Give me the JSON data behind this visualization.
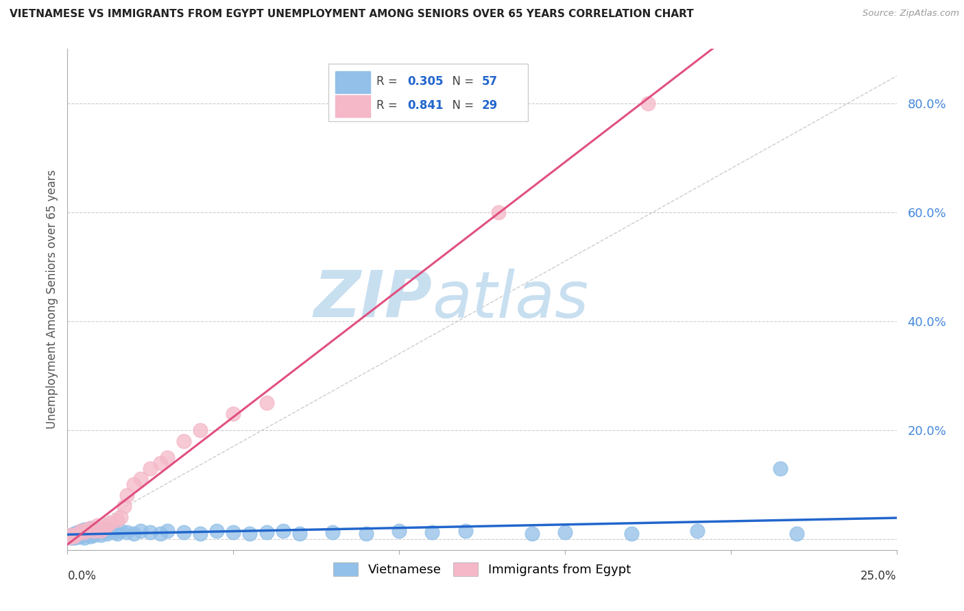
{
  "title": "VIETNAMESE VS IMMIGRANTS FROM EGYPT UNEMPLOYMENT AMONG SENIORS OVER 65 YEARS CORRELATION CHART",
  "source": "Source: ZipAtlas.com",
  "ylabel": "Unemployment Among Seniors over 65 years",
  "ytick_vals": [
    0.0,
    0.2,
    0.4,
    0.6,
    0.8
  ],
  "ytick_labels": [
    "",
    "20.0%",
    "40.0%",
    "60.0%",
    "80.0%"
  ],
  "xlim": [
    0.0,
    0.25
  ],
  "ylim": [
    -0.02,
    0.9
  ],
  "vietnamese_R": 0.305,
  "vietnamese_N": 57,
  "egypt_R": 0.841,
  "egypt_N": 29,
  "vietnamese_color": "#92c0e8",
  "egypt_color": "#f4b8c8",
  "vietnamese_line_color": "#2266cc",
  "egypt_line_color": "#e05080",
  "watermark_zip": "ZIP",
  "watermark_atlas": "atlas",
  "watermark_color_zip": "#c8dff0",
  "watermark_color_atlas": "#c8dff0",
  "legend_label_vietnamese": "Vietnamese",
  "legend_label_egypt": "Immigrants from Egypt",
  "viet_x": [
    0.001,
    0.001,
    0.002,
    0.002,
    0.002,
    0.003,
    0.003,
    0.003,
    0.004,
    0.004,
    0.004,
    0.005,
    0.005,
    0.005,
    0.006,
    0.006,
    0.007,
    0.007,
    0.007,
    0.008,
    0.008,
    0.009,
    0.009,
    0.01,
    0.01,
    0.011,
    0.012,
    0.012,
    0.013,
    0.014,
    0.015,
    0.016,
    0.018,
    0.02,
    0.022,
    0.025,
    0.028,
    0.03,
    0.035,
    0.04,
    0.045,
    0.05,
    0.055,
    0.06,
    0.065,
    0.07,
    0.08,
    0.09,
    0.1,
    0.11,
    0.12,
    0.14,
    0.15,
    0.17,
    0.19,
    0.215,
    0.22
  ],
  "viet_y": [
    0.003,
    0.005,
    0.002,
    0.008,
    0.01,
    0.004,
    0.007,
    0.012,
    0.005,
    0.008,
    0.015,
    0.003,
    0.01,
    0.018,
    0.008,
    0.015,
    0.005,
    0.01,
    0.02,
    0.007,
    0.015,
    0.012,
    0.018,
    0.008,
    0.012,
    0.015,
    0.01,
    0.02,
    0.015,
    0.012,
    0.01,
    0.015,
    0.012,
    0.01,
    0.015,
    0.012,
    0.01,
    0.015,
    0.012,
    0.01,
    0.015,
    0.012,
    0.01,
    0.012,
    0.015,
    0.01,
    0.012,
    0.01,
    0.015,
    0.012,
    0.015,
    0.01,
    0.012,
    0.01,
    0.015,
    0.13,
    0.01
  ],
  "egypt_x": [
    0.001,
    0.001,
    0.002,
    0.003,
    0.004,
    0.005,
    0.006,
    0.007,
    0.008,
    0.009,
    0.01,
    0.011,
    0.012,
    0.013,
    0.015,
    0.016,
    0.017,
    0.018,
    0.02,
    0.022,
    0.025,
    0.028,
    0.03,
    0.035,
    0.04,
    0.05,
    0.06,
    0.13,
    0.175
  ],
  "egypt_y": [
    0.004,
    0.008,
    0.005,
    0.01,
    0.015,
    0.012,
    0.018,
    0.02,
    0.015,
    0.025,
    0.015,
    0.02,
    0.025,
    0.03,
    0.035,
    0.04,
    0.06,
    0.08,
    0.1,
    0.11,
    0.13,
    0.14,
    0.15,
    0.18,
    0.2,
    0.23,
    0.25,
    0.6,
    0.8
  ]
}
